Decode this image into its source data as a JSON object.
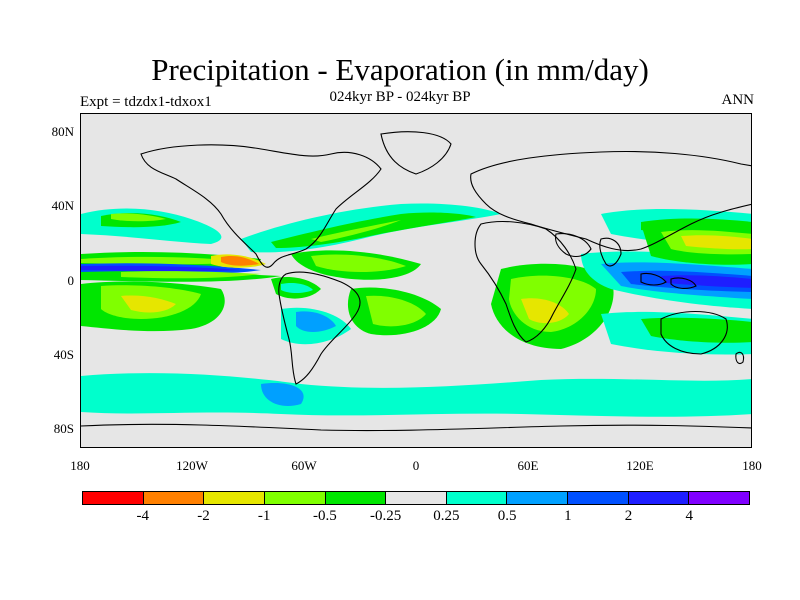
{
  "figure": {
    "title": "Precipitation - Evaporation (in mm/day)",
    "subtitle": "024kyr BP - 024kyr BP",
    "left_label": "Expt = tdzdx1-tdxox1",
    "right_label": "ANN"
  },
  "map": {
    "projection": "cylindrical-equidistant",
    "lon_range": [
      -180,
      180
    ],
    "lat_range": [
      -90,
      90
    ],
    "background_color": "#e6e6e6",
    "coastline_color": "#000000",
    "lat_ticks": [
      {
        "value": 80,
        "label": "80N"
      },
      {
        "value": 40,
        "label": "40N"
      },
      {
        "value": 0,
        "label": "0"
      },
      {
        "value": -40,
        "label": "40S"
      },
      {
        "value": -80,
        "label": "80S"
      }
    ],
    "lon_ticks": [
      {
        "value": -180,
        "label": "180"
      },
      {
        "value": -120,
        "label": "120W"
      },
      {
        "value": -60,
        "label": "60W"
      },
      {
        "value": 0,
        "label": "0"
      },
      {
        "value": 60,
        "label": "60E"
      },
      {
        "value": 120,
        "label": "120E"
      },
      {
        "value": 180,
        "label": "180"
      }
    ]
  },
  "colorbar": {
    "colors": [
      "#ff0000",
      "#ff8000",
      "#e6e600",
      "#80ff00",
      "#00e600",
      "#e6e6e6",
      "#00ffcc",
      "#00a0ff",
      "#0050ff",
      "#1e1eff",
      "#8000ff"
    ],
    "labels": [
      "-4",
      "-2",
      "-1",
      "-0.5",
      "-0.25",
      "0.25",
      "0.5",
      "1",
      "2",
      "4"
    ]
  }
}
